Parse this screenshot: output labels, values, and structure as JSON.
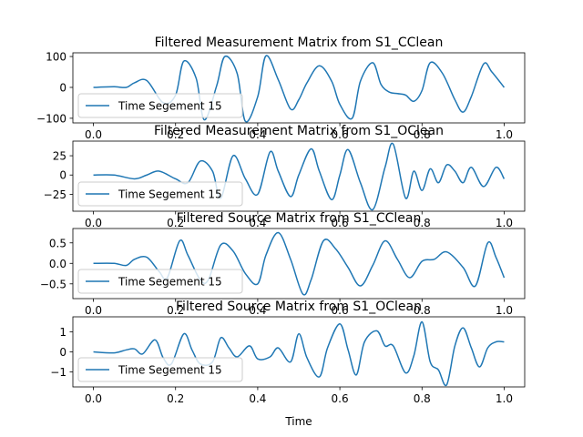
{
  "figure": {
    "xlabel": "Time",
    "line_color": "#1f77b4"
  },
  "chart_data": [
    {
      "type": "line",
      "title": "Filtered Measurement Matrix from S1_CClean",
      "xlabel": "",
      "ylabel": "",
      "xlim": [
        -0.05,
        1.05
      ],
      "ylim": [
        -115,
        112
      ],
      "xticks": [
        0.0,
        0.2,
        0.4,
        0.6,
        0.8,
        1.0
      ],
      "xtick_labels": [
        "0.0",
        "0.2",
        "0.4",
        "0.6",
        "0.8",
        "1.0"
      ],
      "yticks": [
        -100,
        0,
        100
      ],
      "ytick_labels": [
        "−100",
        "0",
        "100"
      ],
      "legend": "lower left",
      "series": [
        {
          "name": "Time Segement 15",
          "x": [
            0.0,
            0.05,
            0.08,
            0.1,
            0.13,
            0.17,
            0.2,
            0.22,
            0.25,
            0.27,
            0.3,
            0.32,
            0.35,
            0.37,
            0.4,
            0.42,
            0.45,
            0.48,
            0.5,
            0.52,
            0.55,
            0.58,
            0.6,
            0.63,
            0.65,
            0.68,
            0.7,
            0.72,
            0.74,
            0.76,
            0.78,
            0.8,
            0.82,
            0.85,
            0.88,
            0.9,
            0.92,
            0.95,
            0.97,
            1.0
          ],
          "y": [
            0,
            2,
            0,
            15,
            22,
            -50,
            -25,
            85,
            30,
            -105,
            5,
            100,
            45,
            -110,
            -30,
            102,
            25,
            -70,
            -40,
            15,
            70,
            20,
            -55,
            -100,
            20,
            80,
            10,
            -15,
            -20,
            -25,
            -45,
            -10,
            80,
            45,
            -40,
            -80,
            -30,
            76,
            50,
            0
          ]
        }
      ]
    },
    {
      "type": "line",
      "title": "Filtered Measurement Matrix from S1_OClean",
      "xlabel": "",
      "ylabel": "",
      "xlim": [
        -0.05,
        1.05
      ],
      "ylim": [
        -47,
        44
      ],
      "xticks": [
        0.0,
        0.2,
        0.4,
        0.6,
        0.8,
        1.0
      ],
      "xtick_labels": [
        "0.0",
        "0.2",
        "0.4",
        "0.6",
        "0.8",
        "1.0"
      ],
      "yticks": [
        -25,
        0,
        25
      ],
      "ytick_labels": [
        "−25",
        "0",
        "25"
      ],
      "legend": "lower left",
      "series": [
        {
          "name": "Time Segement 15",
          "x": [
            0.0,
            0.05,
            0.1,
            0.13,
            0.16,
            0.2,
            0.23,
            0.26,
            0.29,
            0.31,
            0.34,
            0.37,
            0.4,
            0.43,
            0.45,
            0.48,
            0.5,
            0.53,
            0.55,
            0.58,
            0.6,
            0.62,
            0.65,
            0.68,
            0.71,
            0.73,
            0.76,
            0.78,
            0.8,
            0.82,
            0.84,
            0.86,
            0.88,
            0.9,
            0.92,
            0.95,
            0.98,
            1.0
          ],
          "y": [
            0,
            0,
            -5,
            0,
            5,
            -5,
            -10,
            18,
            5,
            -30,
            25,
            -5,
            -25,
            30,
            5,
            -28,
            0,
            34,
            5,
            -32,
            0,
            33,
            -10,
            -45,
            10,
            40,
            -30,
            5,
            -20,
            8,
            -10,
            13,
            5,
            -10,
            10,
            -15,
            10,
            -5
          ]
        }
      ]
    },
    {
      "type": "line",
      "title": "Filtered Source Matrix from S1_CClean",
      "xlabel": "",
      "ylabel": "",
      "xlim": [
        -0.05,
        1.05
      ],
      "ylim": [
        -0.86,
        0.85
      ],
      "xticks": [
        0.0,
        0.2,
        0.4,
        0.6,
        0.8,
        1.0
      ],
      "xtick_labels": [
        "0.0",
        "0.2",
        "0.4",
        "0.6",
        "0.8",
        "1.0"
      ],
      "yticks": [
        -0.5,
        0.0,
        0.5
      ],
      "ytick_labels": [
        "−0.5",
        "0.0",
        "0.5"
      ],
      "legend": "lower left",
      "series": [
        {
          "name": "Time Segement 15",
          "x": [
            0.0,
            0.05,
            0.08,
            0.1,
            0.13,
            0.16,
            0.18,
            0.21,
            0.23,
            0.26,
            0.28,
            0.31,
            0.34,
            0.37,
            0.4,
            0.42,
            0.45,
            0.48,
            0.51,
            0.53,
            0.56,
            0.59,
            0.62,
            0.65,
            0.68,
            0.71,
            0.74,
            0.77,
            0.8,
            0.83,
            0.86,
            0.9,
            0.93,
            0.96,
            0.98,
            1.0
          ],
          "y": [
            0,
            0,
            -0.05,
            0.1,
            0.15,
            -0.2,
            -0.35,
            0.55,
            0.2,
            -0.4,
            -0.4,
            0.45,
            0.3,
            -0.25,
            -0.5,
            0.2,
            0.75,
            0.1,
            -0.75,
            -0.4,
            0.55,
            0.35,
            -0.1,
            -0.55,
            -0.05,
            0.55,
            0.1,
            -0.35,
            0.05,
            0.1,
            0.28,
            -0.1,
            -0.55,
            0.5,
            0.15,
            -0.35
          ]
        }
      ]
    },
    {
      "type": "line",
      "title": "Filtered Source Matrix from S1_OClean",
      "xlabel": "Time",
      "ylabel": "",
      "xlim": [
        -0.05,
        1.05
      ],
      "ylim": [
        -1.75,
        1.75
      ],
      "xticks": [
        0.0,
        0.2,
        0.4,
        0.6,
        0.8,
        1.0
      ],
      "xtick_labels": [
        "0.0",
        "0.2",
        "0.4",
        "0.6",
        "0.8",
        "1.0"
      ],
      "yticks": [
        -1,
        0,
        1
      ],
      "ytick_labels": [
        "−1",
        "0",
        "1"
      ],
      "legend": "lower left",
      "series": [
        {
          "name": "Time Segement 15",
          "x": [
            0.0,
            0.05,
            0.08,
            0.1,
            0.12,
            0.15,
            0.17,
            0.19,
            0.22,
            0.24,
            0.26,
            0.29,
            0.31,
            0.33,
            0.35,
            0.38,
            0.4,
            0.43,
            0.45,
            0.48,
            0.5,
            0.52,
            0.55,
            0.57,
            0.6,
            0.62,
            0.64,
            0.66,
            0.69,
            0.71,
            0.73,
            0.76,
            0.78,
            0.8,
            0.82,
            0.84,
            0.86,
            0.88,
            0.9,
            0.92,
            0.94,
            0.96,
            0.98,
            1.0
          ],
          "y": [
            0,
            -0.05,
            0.1,
            0.15,
            -0.1,
            0.6,
            -0.3,
            -0.6,
            0.9,
            0.1,
            -0.6,
            -0.5,
            0.7,
            0.2,
            -0.25,
            0.3,
            -0.35,
            -0.25,
            0.2,
            -0.5,
            0.9,
            -0.3,
            -1.25,
            0.2,
            1.4,
            0.1,
            -1.15,
            0.5,
            1.05,
            0.3,
            0.3,
            -1.05,
            -0.2,
            1.5,
            -0.5,
            -0.9,
            -1.65,
            0.3,
            1.2,
            0.2,
            -0.75,
            0.2,
            0.5,
            0.5
          ]
        }
      ]
    }
  ]
}
